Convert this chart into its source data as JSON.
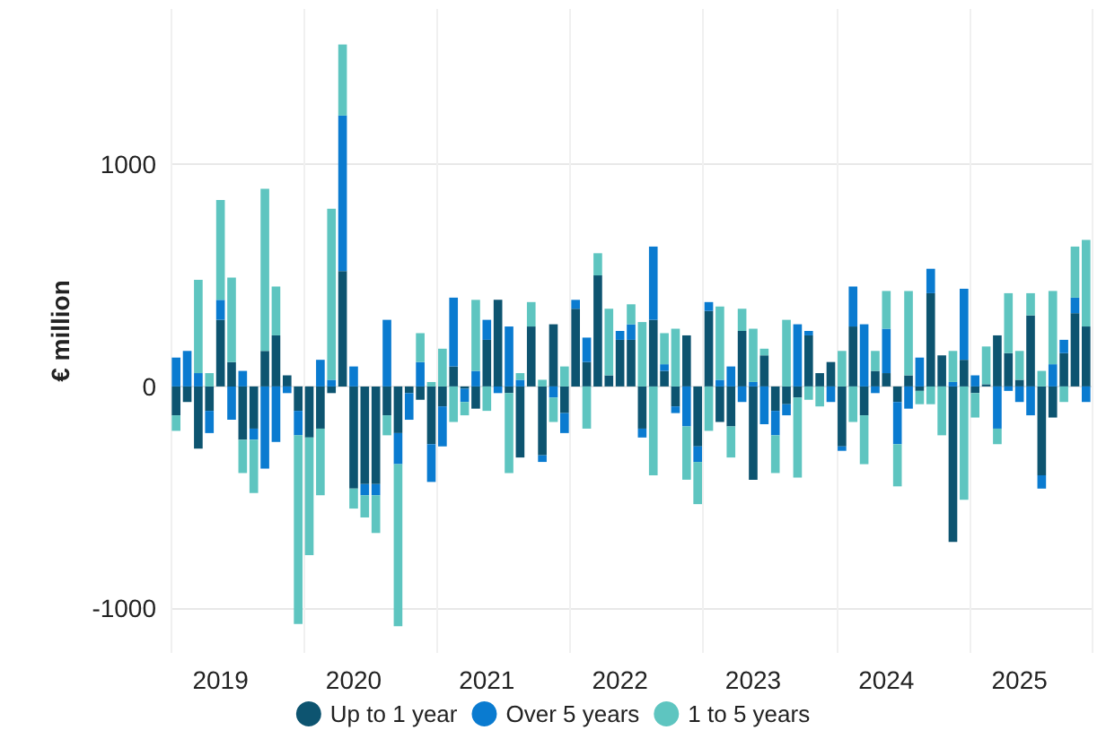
{
  "chart_data": {
    "type": "bar",
    "stacked": true,
    "ylabel": "€ million",
    "categories": [
      null,
      null,
      null,
      null,
      "2019",
      null,
      null,
      null,
      null,
      null,
      null,
      null,
      null,
      null,
      null,
      null,
      "2020",
      null,
      null,
      null,
      null,
      null,
      null,
      null,
      null,
      null,
      null,
      null,
      "2021",
      null,
      null,
      null,
      null,
      null,
      null,
      null,
      null,
      null,
      null,
      null,
      "2022",
      null,
      null,
      null,
      null,
      null,
      null,
      null,
      null,
      null,
      null,
      null,
      "2023",
      null,
      null,
      null,
      null,
      null,
      null,
      null,
      null,
      null,
      null,
      null,
      "2024",
      null,
      null,
      null,
      null,
      null,
      null,
      null,
      null,
      null,
      null,
      null,
      "2025",
      null,
      null,
      null,
      null,
      null,
      null
    ],
    "series": [
      {
        "name": "Up to 1 year",
        "color": "#0d5470",
        "values": [
          -130,
          -70,
          -280,
          -110,
          300,
          110,
          -240,
          -190,
          160,
          230,
          50,
          -110,
          -230,
          -190,
          -30,
          520,
          -460,
          -440,
          -440,
          -130,
          -210,
          -30,
          -60,
          -260,
          -90,
          90,
          -10,
          -100,
          210,
          390,
          -30,
          -320,
          270,
          -310,
          280,
          -120,
          350,
          110,
          500,
          50,
          210,
          210,
          -190,
          300,
          70,
          -90,
          230,
          -270,
          340,
          -160,
          -180,
          250,
          -420,
          140,
          -110,
          -80,
          -50,
          230,
          60,
          110,
          -270,
          270,
          -130,
          70,
          60,
          -70,
          50,
          -20,
          420,
          140,
          -700,
          120,
          -30,
          10,
          230,
          150,
          30,
          320,
          -400,
          -140,
          150,
          330,
          270
        ]
      },
      {
        "name": "Over 5 years",
        "color": "#0a7bd0",
        "values": [
          130,
          160,
          60,
          -100,
          90,
          -150,
          70,
          -50,
          -370,
          -250,
          -30,
          -110,
          0,
          120,
          30,
          700,
          90,
          -50,
          -50,
          300,
          -140,
          -120,
          110,
          -170,
          -180,
          310,
          -60,
          70,
          90,
          -30,
          270,
          30,
          0,
          -30,
          -50,
          -90,
          40,
          110,
          0,
          0,
          40,
          70,
          -40,
          330,
          30,
          -30,
          -180,
          -70,
          40,
          30,
          90,
          -70,
          20,
          -170,
          -110,
          -50,
          280,
          20,
          0,
          -70,
          -20,
          180,
          280,
          -30,
          200,
          -190,
          -100,
          130,
          110,
          0,
          20,
          320,
          50,
          0,
          -190,
          -20,
          -70,
          -130,
          -60,
          100,
          60,
          70,
          -70
        ]
      },
      {
        "name": "1 to 5 years",
        "color": "#5ec5c0",
        "values": [
          -70,
          0,
          420,
          60,
          450,
          380,
          -150,
          -240,
          730,
          220,
          0,
          -850,
          -530,
          -300,
          770,
          320,
          -90,
          -100,
          -170,
          -90,
          -730,
          0,
          130,
          20,
          170,
          -160,
          -60,
          320,
          -110,
          0,
          -360,
          30,
          110,
          30,
          -110,
          90,
          0,
          -190,
          100,
          300,
          0,
          90,
          290,
          -400,
          140,
          260,
          -240,
          -190,
          -200,
          330,
          -140,
          100,
          240,
          30,
          -170,
          300,
          -360,
          -60,
          -90,
          0,
          160,
          -160,
          -220,
          90,
          170,
          -190,
          380,
          -60,
          -80,
          -220,
          140,
          -510,
          -110,
          170,
          -70,
          270,
          130,
          100,
          70,
          330,
          -70,
          230,
          390
        ]
      }
    ],
    "ylim": [
      -1200,
      1700
    ],
    "yticks": [
      -1000,
      0,
      1000
    ],
    "grid": true,
    "legend": "bottom"
  }
}
